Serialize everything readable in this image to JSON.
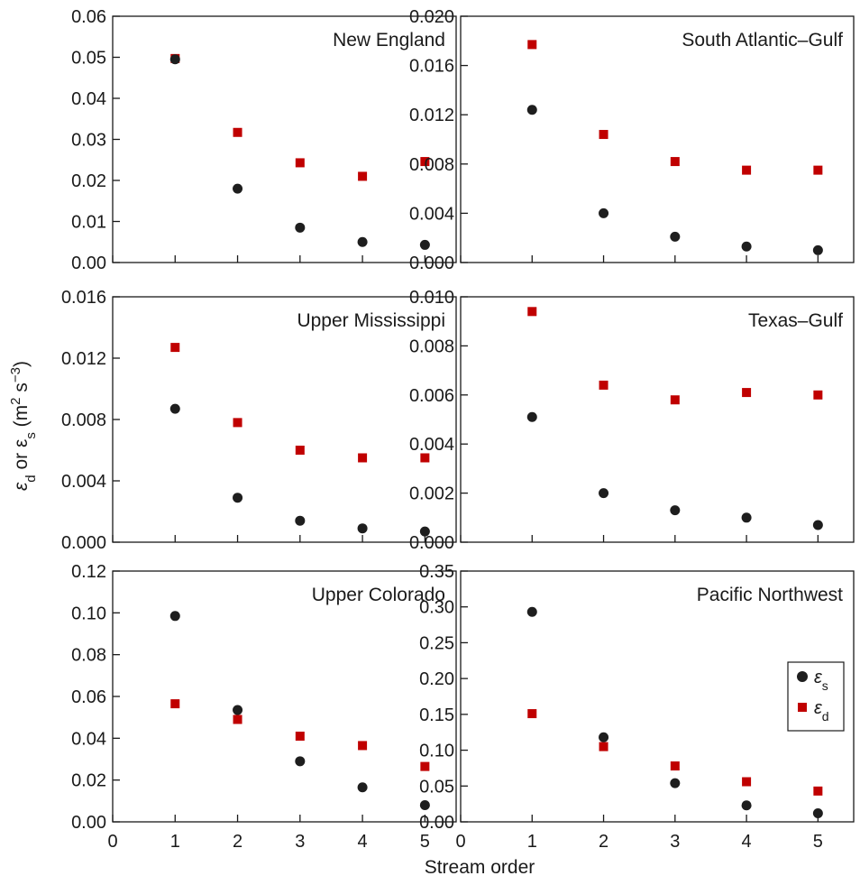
{
  "figure": {
    "xlabel": "Stream order",
    "ylabel": {
      "prefix": "ε",
      "prefix_sub": "d",
      "mid": " or ε",
      "mid_sub": "s",
      "unit_open": " (m",
      "unit_sup1": "2",
      "unit_mid": " s",
      "unit_sup2": "−3",
      "unit_close": ")"
    },
    "legend": {
      "placement": "right, in Pacific Northwest panel",
      "items": [
        {
          "symbol": "ε",
          "sub": "s",
          "series": "eps_s",
          "marker": "circle",
          "color": "#1e1e1e"
        },
        {
          "symbol": "ε",
          "sub": "d",
          "series": "eps_d",
          "marker": "square",
          "color": "#c00000"
        }
      ]
    },
    "colors": {
      "eps_s": "#1e1e1e",
      "eps_d": "#c00000",
      "axis": "#1a1a1a"
    }
  },
  "chart_data": [
    {
      "type": "scatter",
      "title": "New England",
      "x": [
        1,
        2,
        3,
        4,
        5
      ],
      "xlim": [
        0,
        5.5
      ],
      "xticks": [
        "0",
        "1",
        "2",
        "3",
        "4",
        "5"
      ],
      "xticks_shown": false,
      "ylim": [
        0,
        0.06
      ],
      "yticks": [
        "0.00",
        "0.01",
        "0.02",
        "0.03",
        "0.04",
        "0.05",
        "0.06"
      ],
      "series": [
        {
          "key": "eps_s",
          "values": [
            0.0495,
            0.018,
            0.0085,
            0.005,
            0.0043
          ]
        },
        {
          "key": "eps_d",
          "values": [
            0.0497,
            0.0317,
            0.0243,
            0.021,
            0.0246
          ]
        }
      ]
    },
    {
      "type": "scatter",
      "title": "South Atlantic–Gulf",
      "x": [
        1,
        2,
        3,
        4,
        5
      ],
      "xlim": [
        0,
        5.5
      ],
      "xticks": [
        "0",
        "1",
        "2",
        "3",
        "4",
        "5"
      ],
      "xticks_shown": false,
      "ylim": [
        0,
        0.02
      ],
      "yticks": [
        "0.000",
        "0.004",
        "0.008",
        "0.012",
        "0.016",
        "0.020"
      ],
      "series": [
        {
          "key": "eps_s",
          "values": [
            0.0124,
            0.004,
            0.0021,
            0.0013,
            0.001
          ]
        },
        {
          "key": "eps_d",
          "values": [
            0.0177,
            0.0104,
            0.0082,
            0.0075,
            0.0075
          ]
        }
      ]
    },
    {
      "type": "scatter",
      "title": "Upper Mississippi",
      "x": [
        1,
        2,
        3,
        4,
        5
      ],
      "xlim": [
        0,
        5.5
      ],
      "xticks": [
        "0",
        "1",
        "2",
        "3",
        "4",
        "5"
      ],
      "xticks_shown": false,
      "ylim": [
        0,
        0.016
      ],
      "yticks": [
        "0.000",
        "0.004",
        "0.008",
        "0.012",
        "0.016"
      ],
      "series": [
        {
          "key": "eps_s",
          "values": [
            0.0087,
            0.0029,
            0.0014,
            0.0009,
            0.0007
          ]
        },
        {
          "key": "eps_d",
          "values": [
            0.0127,
            0.0078,
            0.006,
            0.0055,
            0.0055
          ]
        }
      ]
    },
    {
      "type": "scatter",
      "title": "Texas–Gulf",
      "x": [
        1,
        2,
        3,
        4,
        5
      ],
      "xlim": [
        0,
        5.5
      ],
      "xticks": [
        "0",
        "1",
        "2",
        "3",
        "4",
        "5"
      ],
      "xticks_shown": false,
      "ylim": [
        0,
        0.01
      ],
      "yticks": [
        "0.000",
        "0.002",
        "0.004",
        "0.006",
        "0.008",
        "0.010"
      ],
      "series": [
        {
          "key": "eps_s",
          "values": [
            0.0051,
            0.002,
            0.0013,
            0.001,
            0.0007
          ]
        },
        {
          "key": "eps_d",
          "values": [
            0.0094,
            0.0064,
            0.0058,
            0.0061,
            0.006
          ]
        }
      ]
    },
    {
      "type": "scatter",
      "title": "Upper Colorado",
      "x": [
        1,
        2,
        3,
        4,
        5
      ],
      "xlim": [
        0,
        5.5
      ],
      "xticks": [
        "0",
        "1",
        "2",
        "3",
        "4",
        "5"
      ],
      "xticks_shown": true,
      "ylim": [
        0,
        0.12
      ],
      "yticks": [
        "0.00",
        "0.02",
        "0.04",
        "0.06",
        "0.08",
        "0.10",
        "0.12"
      ],
      "series": [
        {
          "key": "eps_s",
          "values": [
            0.0985,
            0.0535,
            0.029,
            0.0165,
            0.008
          ]
        },
        {
          "key": "eps_d",
          "values": [
            0.0565,
            0.049,
            0.041,
            0.0365,
            0.0265
          ]
        }
      ]
    },
    {
      "type": "scatter",
      "title": "Pacific Northwest",
      "x": [
        1,
        2,
        3,
        4,
        5
      ],
      "xlim": [
        0,
        5.5
      ],
      "xticks": [
        "0",
        "1",
        "2",
        "3",
        "4",
        "5"
      ],
      "xticks_shown": true,
      "ylim": [
        0,
        0.35
      ],
      "yticks": [
        "0.00",
        "0.05",
        "0.10",
        "0.15",
        "0.20",
        "0.25",
        "0.30",
        "0.35"
      ],
      "series": [
        {
          "key": "eps_s",
          "values": [
            0.293,
            0.118,
            0.054,
            0.023,
            0.012
          ]
        },
        {
          "key": "eps_d",
          "values": [
            0.151,
            0.105,
            0.078,
            0.056,
            0.043
          ]
        }
      ]
    }
  ]
}
